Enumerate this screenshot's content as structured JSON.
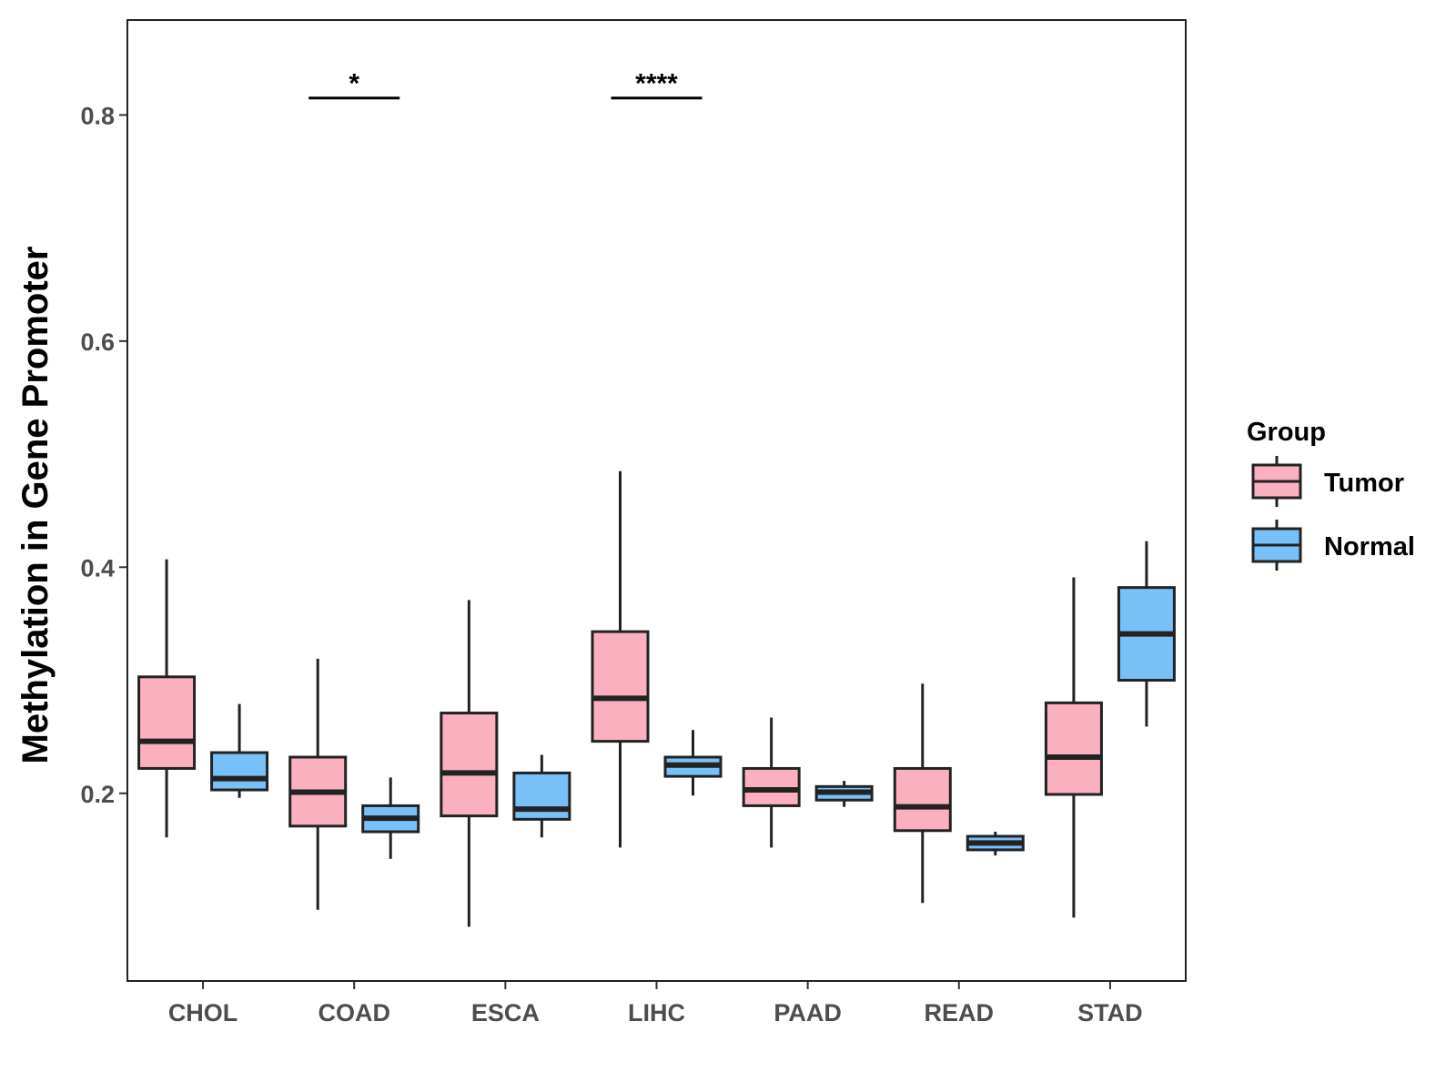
{
  "chart_data": {
    "type": "box",
    "title": "",
    "xlabel": "",
    "ylabel": "Methylation in Gene Promoter",
    "ylim": [
      0.034,
      0.884
    ],
    "yticks": [
      0.2,
      0.4,
      0.6,
      0.8
    ],
    "ytick_labels": [
      "0.2",
      "0.4",
      "0.6",
      "0.8"
    ],
    "categories": [
      "CHOL",
      "COAD",
      "ESCA",
      "LIHC",
      "PAAD",
      "READ",
      "STAD"
    ],
    "grid": false,
    "legend": {
      "title": "Group",
      "position": "right",
      "entries": [
        {
          "name": "Tumor",
          "color": "#fbb0c0"
        },
        {
          "name": "Normal",
          "color": "#77c0f8"
        }
      ]
    },
    "series": [
      {
        "name": "Tumor",
        "color": "#fbb0c0",
        "boxes": [
          {
            "category": "CHOL",
            "min": 0.161,
            "q1": 0.222,
            "median": 0.246,
            "q3": 0.303,
            "max": 0.407
          },
          {
            "category": "COAD",
            "min": 0.097,
            "q1": 0.171,
            "median": 0.201,
            "q3": 0.232,
            "max": 0.319
          },
          {
            "category": "ESCA",
            "min": 0.082,
            "q1": 0.18,
            "median": 0.218,
            "q3": 0.271,
            "max": 0.371
          },
          {
            "category": "LIHC",
            "min": 0.152,
            "q1": 0.246,
            "median": 0.284,
            "q3": 0.343,
            "max": 0.485
          },
          {
            "category": "PAAD",
            "min": 0.152,
            "q1": 0.189,
            "median": 0.203,
            "q3": 0.222,
            "max": 0.267
          },
          {
            "category": "READ",
            "min": 0.103,
            "q1": 0.167,
            "median": 0.188,
            "q3": 0.222,
            "max": 0.297
          },
          {
            "category": "STAD",
            "min": 0.09,
            "q1": 0.199,
            "median": 0.232,
            "q3": 0.28,
            "max": 0.391
          }
        ]
      },
      {
        "name": "Normal",
        "color": "#77c0f8",
        "boxes": [
          {
            "category": "CHOL",
            "min": 0.196,
            "q1": 0.203,
            "median": 0.213,
            "q3": 0.236,
            "max": 0.279
          },
          {
            "category": "COAD",
            "min": 0.142,
            "q1": 0.166,
            "median": 0.178,
            "q3": 0.189,
            "max": 0.214
          },
          {
            "category": "ESCA",
            "min": 0.161,
            "q1": 0.177,
            "median": 0.186,
            "q3": 0.218,
            "max": 0.234
          },
          {
            "category": "LIHC",
            "min": 0.198,
            "q1": 0.215,
            "median": 0.225,
            "q3": 0.232,
            "max": 0.256
          },
          {
            "category": "PAAD",
            "min": 0.188,
            "q1": 0.194,
            "median": 0.201,
            "q3": 0.206,
            "max": 0.211
          },
          {
            "category": "READ",
            "min": 0.145,
            "q1": 0.15,
            "median": 0.156,
            "q3": 0.162,
            "max": 0.166
          },
          {
            "category": "STAD",
            "min": 0.259,
            "q1": 0.3,
            "median": 0.341,
            "q3": 0.382,
            "max": 0.423
          }
        ]
      }
    ],
    "annotations": [
      {
        "category": "COAD",
        "label": "*",
        "y": 0.815
      },
      {
        "category": "LIHC",
        "label": "****",
        "y": 0.815
      }
    ]
  }
}
